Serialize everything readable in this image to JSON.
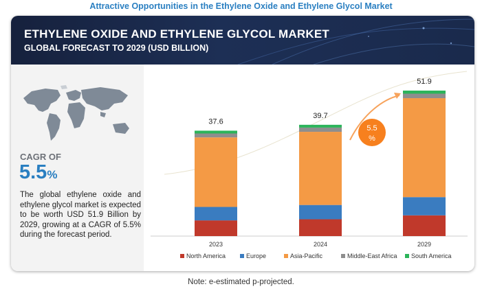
{
  "page_title": "Attractive Opportunities in the Ethylene Oxide and Ethylene Glycol Market",
  "banner": {
    "title": "ETHYLENE OXIDE AND ETHYLENE GLYCOL MARKET",
    "subtitle": "GLOBAL FORECAST TO 2029 (USD BILLION)"
  },
  "left_panel": {
    "cagr_label": "CAGR OF",
    "cagr_number": "5.5",
    "cagr_unit": "%",
    "description": "The global ethylene oxide and ethylene glycol market is expected to be worth USD 51.9 Billion by 2029, growing at a CAGR of 5.5% during the forecast period."
  },
  "chart_data": {
    "type": "bar",
    "stacked": true,
    "categories": [
      "2023",
      "2024",
      "2029"
    ],
    "totals": [
      "37.6",
      "39.7",
      "51.9"
    ],
    "series": [
      {
        "name": "North America",
        "color": "#c0392b",
        "values": [
          5.6,
          6.0,
          7.4
        ]
      },
      {
        "name": "Europe",
        "color": "#3a7cc0",
        "values": [
          4.8,
          5.1,
          6.5
        ]
      },
      {
        "name": "Asia-Pacific",
        "color": "#f49a45",
        "values": [
          24.8,
          26.1,
          35.3
        ]
      },
      {
        "name": "Middle-East Africa",
        "color": "#8e8e8e",
        "values": [
          1.4,
          1.5,
          1.6
        ]
      },
      {
        "name": "South America",
        "color": "#2cb45a",
        "values": [
          1.0,
          1.0,
          1.1
        ]
      }
    ],
    "ylim": [
      0,
      51.9
    ],
    "grid": false,
    "legend_position": "bottom",
    "cagr_badge": {
      "line1": "5.5",
      "line2": "%",
      "color": "#f7801e"
    }
  },
  "note": "Note: e-estimated p-projected."
}
